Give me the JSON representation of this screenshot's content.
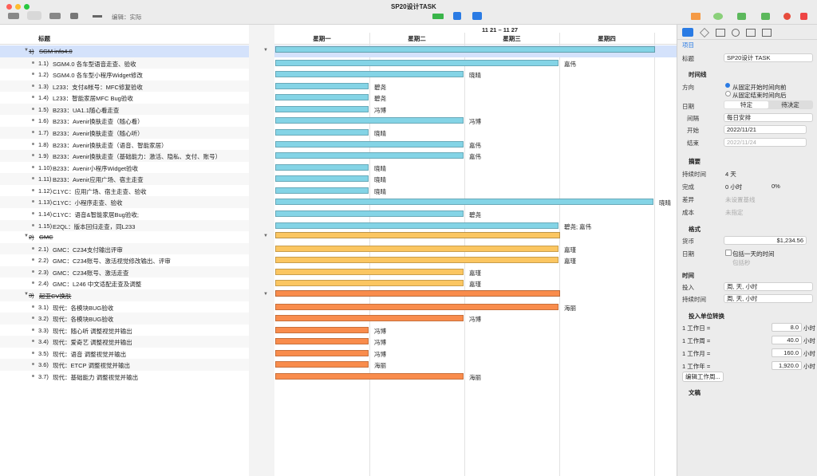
{
  "window": {
    "title": "SP20设计TASK",
    "edit_mode": "编辑：实际"
  },
  "outline": {
    "header": "标题",
    "rows": [
      {
        "num": "1)",
        "title": "SGM info4.0",
        "group": 0,
        "summary": true,
        "days": 4,
        "resource": null
      },
      {
        "num": "1.1)",
        "title": "SGM4.0 各车型语音走查、验收",
        "group": 0,
        "days": 3,
        "resource": "嘉伟"
      },
      {
        "num": "1.2)",
        "title": "SGM4.0 各车型小程序Widget修改",
        "group": 0,
        "days": 2,
        "resource": "晓晴"
      },
      {
        "num": "1.3)",
        "title": "L233：支付&帐号：MFC修复验收",
        "group": 0,
        "days": 1,
        "resource": "碧尧"
      },
      {
        "num": "1.4)",
        "title": "L233：智能家居MFC Bug验收",
        "group": 0,
        "days": 1,
        "resource": "碧尧"
      },
      {
        "num": "1.5)",
        "title": "B233：UA1.1随心看走查",
        "group": 0,
        "days": 1,
        "resource": "冯博"
      },
      {
        "num": "1.6)",
        "title": "B233：Avenir换肤走查（随心看）",
        "group": 0,
        "days": 2,
        "resource": "冯博"
      },
      {
        "num": "1.7)",
        "title": "B233：Avenir换肤走查（随心听）",
        "group": 0,
        "days": 1,
        "resource": "晓晴"
      },
      {
        "num": "1.8)",
        "title": "B233：Avenir换肤走查（语音、智能家居）",
        "group": 0,
        "days": 2,
        "resource": "嘉伟"
      },
      {
        "num": "1.9)",
        "title": "B233：Avenir换肤走查（基础能力：激活、隐私、支付、账号）",
        "group": 0,
        "days": 2,
        "resource": "嘉伟"
      },
      {
        "num": "1.10)",
        "title": "B233：Avenir小程序Widget验收",
        "group": 0,
        "days": 1,
        "resource": "晓晴"
      },
      {
        "num": "1.11)",
        "title": "B233：Avenir应用广场、宿主走查",
        "group": 0,
        "days": 1,
        "resource": "晓晴"
      },
      {
        "num": "1.12)",
        "title": "C1YC：应用广场、宿主走查、验收",
        "group": 0,
        "days": 1,
        "resource": "晓晴"
      },
      {
        "num": "1.13)",
        "title": "C1YC：小程序走查、验收",
        "group": 0,
        "days": 4,
        "resource": "晓晴"
      },
      {
        "num": "1.14)",
        "title": "C1YC：语音&智能家居Bug验收;",
        "group": 0,
        "days": 2,
        "resource": "碧尧"
      },
      {
        "num": "1.15)",
        "title": "E2QL：版本回归走查，同L233",
        "group": 0,
        "days": 3,
        "resource": "碧尧; 嘉伟"
      },
      {
        "num": "2)",
        "title": "GMC",
        "group": 1,
        "summary": true,
        "days": 3,
        "resource": null
      },
      {
        "num": "2.1)",
        "title": "GMC：C234支付输出评审",
        "group": 1,
        "days": 3,
        "resource": "嘉瑾"
      },
      {
        "num": "2.2)",
        "title": "GMC：C234账号、激活视觉修改输出、评审",
        "group": 1,
        "days": 3,
        "resource": "嘉瑾"
      },
      {
        "num": "2.3)",
        "title": "GMC：C234账号、激活走查",
        "group": 1,
        "days": 2,
        "resource": "嘉瑾"
      },
      {
        "num": "2.4)",
        "title": "GMC：L246 中文适配走查及调整",
        "group": 1,
        "days": 2,
        "resource": "嘉瑾"
      },
      {
        "num": "3)",
        "title": "起亚CV换肤",
        "group": 2,
        "summary": true,
        "days": 3,
        "resource": null
      },
      {
        "num": "3.1)",
        "title": "现代：各模块BUG验收",
        "group": 2,
        "days": 3,
        "resource": "海丽"
      },
      {
        "num": "3.2)",
        "title": "现代：各模块BUG验收",
        "group": 2,
        "days": 2,
        "resource": "冯博"
      },
      {
        "num": "3.3)",
        "title": "现代：随心听 调整视觉并输出",
        "group": 2,
        "days": 1,
        "resource": "冯博"
      },
      {
        "num": "3.4)",
        "title": "现代：爱奇艺 调整视觉并输出",
        "group": 2,
        "days": 1,
        "resource": "冯博"
      },
      {
        "num": "3.5)",
        "title": "现代：语音 调整视觉并输出",
        "group": 2,
        "days": 1,
        "resource": "冯博"
      },
      {
        "num": "3.6)",
        "title": "现代：ETCP 调整视觉并输出",
        "group": 2,
        "days": 1,
        "resource": "海丽"
      },
      {
        "num": "3.7)",
        "title": "现代：基础能力 调整视觉并输出",
        "group": 2,
        "days": 2,
        "resource": "海丽"
      }
    ]
  },
  "gantt": {
    "week": "11 21 – 11 27",
    "days": [
      "星期一",
      "星期二",
      "星期三",
      "星期四"
    ],
    "group_colors": [
      "#84d4e6",
      "#fbc661",
      "#f98c4c"
    ]
  },
  "inspector": {
    "tab": "项目",
    "title_label": "标题",
    "title_value": "SP20设计 TASK",
    "timeline": {
      "heading": "时间线",
      "direction_label": "方向",
      "direction_options": [
        "从固定开始时间向前",
        "从固定结束时间向后"
      ],
      "date_label": "日期",
      "date_options": [
        "特定",
        "待决定"
      ],
      "interval_label": "间隔",
      "interval": "每日安排",
      "start_label": "开始",
      "start": "2022/11/21",
      "end_label": "结束",
      "end": "2022/11/24"
    },
    "summary": {
      "heading": "摘要",
      "duration_label": "持续时间",
      "duration": "4 天",
      "complete_label": "完成",
      "complete": "0 小时",
      "complete_pct": "0%",
      "variance_label": "差异",
      "variance": "未设置基线",
      "cost_label": "成本",
      "cost": "未指定"
    },
    "format": {
      "heading": "格式",
      "currency_label": "货币",
      "currency": "$1,234.56",
      "date_label": "日期",
      "date_options": [
        "包括一天的时间",
        "包括秒"
      ],
      "time_heading": "时间",
      "effort_label": "投入",
      "effort": "周, 天, 小时",
      "duration_label": "持续时间",
      "duration": "周, 天, 小时"
    },
    "conversion": {
      "heading": "投入单位转换",
      "unit": "小时",
      "rows": [
        {
          "label": "1 工作日 =",
          "value": "8.0"
        },
        {
          "label": "1 工作周 =",
          "value": "40.0"
        },
        {
          "label": "1 工作月 =",
          "value": "160.0"
        },
        {
          "label": "1 工作年 =",
          "value": "1,920.0"
        }
      ],
      "edit_button": "编辑工作周..."
    },
    "documents": "文稿"
  }
}
